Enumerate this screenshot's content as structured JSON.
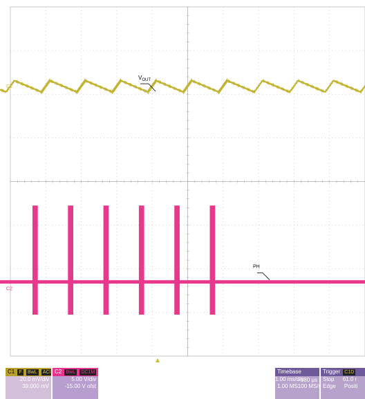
{
  "chart_data": {
    "type": "line",
    "title": "",
    "grid": true,
    "x_divisions": 10,
    "y_divisions": 8,
    "series": [
      {
        "channel": "C1",
        "label": "VOUT",
        "label_main": "V",
        "label_sub": "OUT",
        "color": "#c2b433",
        "waveform": "sawtooth ripple",
        "ripple_pk_pk_mV": 15,
        "period_ms": 1.0
      },
      {
        "channel": "C2",
        "label": "PH",
        "color": "#e8388c",
        "waveform": "burst switching",
        "burst_period_ms": 1.0,
        "burst_width_ms": 0.15,
        "high_V": 15,
        "low_V": 0
      }
    ],
    "channel_markers": [
      "C1",
      "C2"
    ]
  },
  "info": {
    "c1": {
      "name": "C1",
      "flag": "F",
      "tags": [
        "BwL",
        "ACIM"
      ],
      "scale": "20.0 mV/div",
      "offset": "39.000 mV"
    },
    "c2": {
      "name": "C2",
      "tags": [
        "BwL",
        "DC1M"
      ],
      "scale": "5.00 V/div",
      "offset": "-15.00 V ofst"
    },
    "timebase": {
      "label": "Timebase",
      "delay": "-980 µs",
      "scale": "1.00 ms/div",
      "points": "1.00 MS",
      "rate": "100 MS/s"
    },
    "trigger": {
      "label": "Trigger",
      "tag": "C1D",
      "mode": "Stop",
      "level": "61.0 r",
      "type": "Edge",
      "slope": "Positi"
    }
  },
  "colors": {
    "c1": "#c2b433",
    "c2": "#e8388c",
    "grid": "#c8c8c8"
  }
}
